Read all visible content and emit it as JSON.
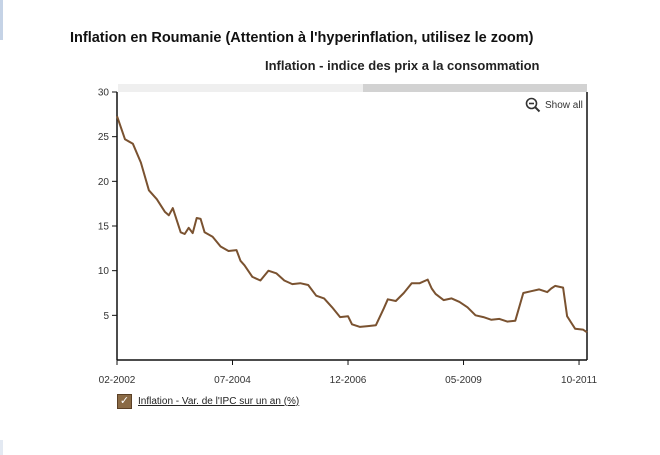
{
  "page_title": "Inflation en Roumanie (Attention à l'hyperinflation, utilisez le zoom)",
  "show_all_label": "Show all",
  "zoom_icon": "zoom-out-icon",
  "colors": {
    "series": "#7a5230",
    "axis": "#111111",
    "scrollbar_track": "#efefef",
    "scrollbar_thumb": "#d2d2d2"
  },
  "chart_data": {
    "type": "line",
    "title": "Inflation - indice des prix a la consommation",
    "xlabel": "",
    "ylabel": "",
    "ylim": [
      0,
      30
    ],
    "xlim": [
      "2002-02",
      "2011-12"
    ],
    "y_ticks": [
      5,
      10,
      15,
      20,
      25,
      30
    ],
    "x_ticks": [
      "02-2002",
      "07-2004",
      "12-2006",
      "05-2009",
      "10-2011"
    ],
    "grid": false,
    "legend_position": "bottom-left",
    "series": [
      {
        "name": "Inflation - Var. de l'IPC sur un an (%)",
        "points": [
          [
            "2002-02",
            27.3
          ],
          [
            "2002-04",
            24.7
          ],
          [
            "2002-06",
            24.2
          ],
          [
            "2002-08",
            22.1
          ],
          [
            "2002-10",
            19.0
          ],
          [
            "2002-12",
            18.0
          ],
          [
            "2003-02",
            16.6
          ],
          [
            "2003-03",
            16.2
          ],
          [
            "2003-04",
            17.0
          ],
          [
            "2003-06",
            14.3
          ],
          [
            "2003-07",
            14.1
          ],
          [
            "2003-08",
            14.8
          ],
          [
            "2003-09",
            14.2
          ],
          [
            "2003-10",
            15.9
          ],
          [
            "2003-11",
            15.8
          ],
          [
            "2003-12",
            14.3
          ],
          [
            "2004-02",
            13.8
          ],
          [
            "2004-04",
            12.7
          ],
          [
            "2004-06",
            12.2
          ],
          [
            "2004-08",
            12.3
          ],
          [
            "2004-09",
            11.1
          ],
          [
            "2004-10",
            10.6
          ],
          [
            "2004-12",
            9.3
          ],
          [
            "2005-02",
            8.9
          ],
          [
            "2005-04",
            10.0
          ],
          [
            "2005-06",
            9.7
          ],
          [
            "2005-08",
            8.9
          ],
          [
            "2005-10",
            8.5
          ],
          [
            "2005-12",
            8.6
          ],
          [
            "2006-02",
            8.4
          ],
          [
            "2006-04",
            7.2
          ],
          [
            "2006-06",
            6.9
          ],
          [
            "2006-08",
            5.9
          ],
          [
            "2006-10",
            4.8
          ],
          [
            "2006-12",
            4.9
          ],
          [
            "2007-01",
            4.0
          ],
          [
            "2007-03",
            3.7
          ],
          [
            "2007-05",
            3.8
          ],
          [
            "2007-07",
            3.9
          ],
          [
            "2007-09",
            5.8
          ],
          [
            "2007-10",
            6.8
          ],
          [
            "2007-12",
            6.6
          ],
          [
            "2008-02",
            7.5
          ],
          [
            "2008-04",
            8.6
          ],
          [
            "2008-06",
            8.6
          ],
          [
            "2008-08",
            9.0
          ],
          [
            "2008-09",
            8.0
          ],
          [
            "2008-10",
            7.4
          ],
          [
            "2008-12",
            6.7
          ],
          [
            "2009-02",
            6.9
          ],
          [
            "2009-04",
            6.5
          ],
          [
            "2009-06",
            5.9
          ],
          [
            "2009-08",
            5.0
          ],
          [
            "2009-10",
            4.8
          ],
          [
            "2009-12",
            4.5
          ],
          [
            "2010-02",
            4.6
          ],
          [
            "2010-04",
            4.3
          ],
          [
            "2010-06",
            4.4
          ],
          [
            "2010-08",
            7.5
          ],
          [
            "2010-10",
            7.7
          ],
          [
            "2010-12",
            7.9
          ],
          [
            "2011-02",
            7.6
          ],
          [
            "2011-03",
            8.0
          ],
          [
            "2011-04",
            8.3
          ],
          [
            "2011-06",
            8.1
          ],
          [
            "2011-07",
            4.9
          ],
          [
            "2011-08",
            4.2
          ],
          [
            "2011-09",
            3.5
          ],
          [
            "2011-11",
            3.4
          ],
          [
            "2011-12",
            3.1
          ]
        ]
      }
    ]
  }
}
